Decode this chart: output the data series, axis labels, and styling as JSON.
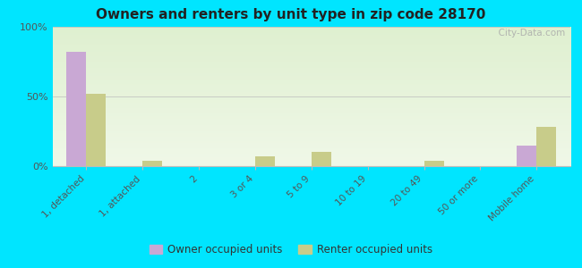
{
  "title": "Owners and renters by unit type in zip code 28170",
  "categories": [
    "1, detached",
    "1, attached",
    "2",
    "3 or 4",
    "5 to 9",
    "10 to 19",
    "20 to 49",
    "50 or more",
    "Mobile home"
  ],
  "owner_values": [
    82,
    0,
    0,
    0,
    0,
    0,
    0,
    0,
    15
  ],
  "renter_values": [
    52,
    4,
    0,
    7,
    10,
    0,
    4,
    0,
    28
  ],
  "owner_color": "#c9a8d4",
  "renter_color": "#c8cc8a",
  "background_top": "#dff0d0",
  "background_bottom": "#f0f8e8",
  "outer_bg": "#00e5ff",
  "ylim": [
    0,
    100
  ],
  "yticks": [
    0,
    50,
    100
  ],
  "ytick_labels": [
    "0%",
    "50%",
    "100%"
  ],
  "bar_width": 0.35,
  "legend_owner": "Owner occupied units",
  "legend_renter": "Renter occupied units",
  "watermark": "  City-Data.com"
}
